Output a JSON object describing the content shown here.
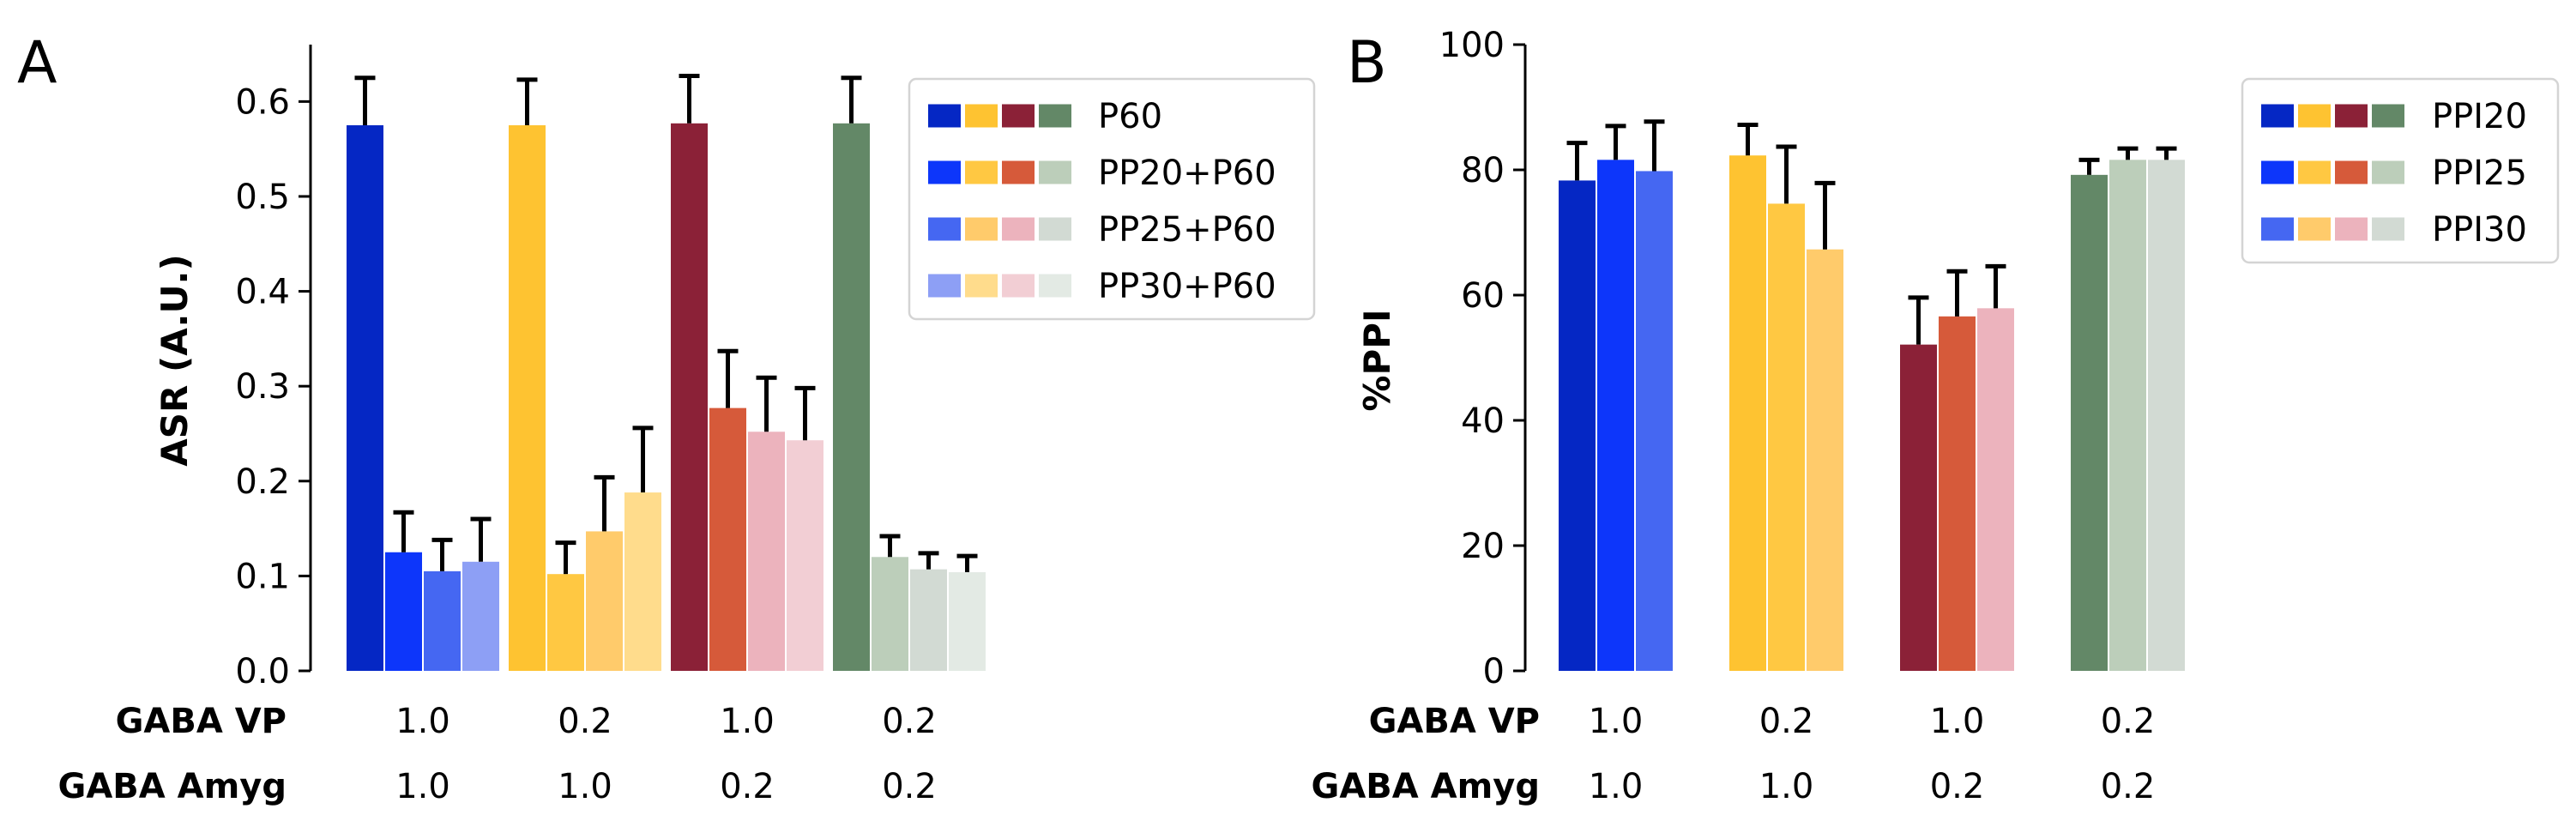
{
  "panels": [
    "A",
    "B"
  ],
  "chart_data": [
    {
      "type": "bar",
      "panel_label": "A",
      "ylabel": "ASR (A.U.)",
      "ylim": [
        0,
        0.66
      ],
      "yticks": [
        0.0,
        0.1,
        0.2,
        0.3,
        0.4,
        0.5,
        0.6
      ],
      "ytick_labels": [
        "0.0",
        "0.1",
        "0.2",
        "0.3",
        "0.4",
        "0.5",
        "0.6"
      ],
      "row_labels": [
        "GABA VP",
        "GABA Amyg"
      ],
      "groups": [
        {
          "vp": "1.0",
          "amyg": "1.0",
          "colors": [
            "#0527c4",
            "#0d36fa",
            "#4567f2",
            "#8d9ff5"
          ],
          "values": [
            0.575,
            0.125,
            0.105,
            0.115
          ],
          "errors": [
            0.05,
            0.042,
            0.033,
            0.045
          ]
        },
        {
          "vp": "0.2",
          "amyg": "1.0",
          "colors": [
            "#fec331",
            "#ffc842",
            "#ffcb6b",
            "#ffdc8c"
          ],
          "values": [
            0.575,
            0.102,
            0.147,
            0.188
          ],
          "errors": [
            0.048,
            0.033,
            0.057,
            0.068
          ]
        },
        {
          "vp": "1.0",
          "amyg": "0.2",
          "colors": [
            "#8b2137",
            "#d65a3a",
            "#ecb3bd",
            "#f2ced4"
          ],
          "values": [
            0.577,
            0.277,
            0.252,
            0.243
          ],
          "errors": [
            0.05,
            0.06,
            0.057,
            0.055
          ]
        },
        {
          "vp": "0.2",
          "amyg": "0.2",
          "colors": [
            "#638867",
            "#bcceba",
            "#d2dad3",
            "#e3eae4"
          ],
          "values": [
            0.577,
            0.12,
            0.107,
            0.104
          ],
          "errors": [
            0.048,
            0.022,
            0.017,
            0.017
          ]
        }
      ],
      "legend": {
        "placement": "top-right",
        "entries": [
          {
            "label": "P60",
            "colors": [
              "#0527c4",
              "#fec331",
              "#8b2137",
              "#638867"
            ]
          },
          {
            "label": "PP20+P60",
            "colors": [
              "#0d36fa",
              "#ffc842",
              "#d65a3a",
              "#bcceba"
            ]
          },
          {
            "label": "PP25+P60",
            "colors": [
              "#4567f2",
              "#ffcb6b",
              "#ecb3bd",
              "#d2dad3"
            ]
          },
          {
            "label": "PP30+P60",
            "colors": [
              "#8d9ff5",
              "#ffdc8c",
              "#f2ced4",
              "#e3eae4"
            ]
          }
        ]
      }
    },
    {
      "type": "bar",
      "panel_label": "B",
      "ylabel": "%PPI",
      "ylim": [
        0,
        100
      ],
      "yticks": [
        0,
        20,
        40,
        60,
        80,
        100
      ],
      "ytick_labels": [
        "0",
        "20",
        "40",
        "60",
        "80",
        "100"
      ],
      "row_labels": [
        "GABA VP",
        "GABA Amyg"
      ],
      "groups": [
        {
          "vp": "1.0",
          "amyg": "1.0",
          "colors": [
            "#0527c4",
            "#0d36fa",
            "#4567f2"
          ],
          "values": [
            78.3,
            81.6,
            79.8
          ],
          "errors": [
            6,
            5.4,
            7.9
          ]
        },
        {
          "vp": "0.2",
          "amyg": "1.0",
          "colors": [
            "#fec331",
            "#ffc842",
            "#ffcb6b"
          ],
          "values": [
            82.3,
            74.6,
            67.3
          ],
          "errors": [
            4.9,
            9.1,
            10.6
          ]
        },
        {
          "vp": "1.0",
          "amyg": "0.2",
          "colors": [
            "#8b2137",
            "#d65a3a",
            "#ecb3bd"
          ],
          "values": [
            52.1,
            56.6,
            57.9
          ],
          "errors": [
            7.5,
            7.2,
            6.7
          ]
        },
        {
          "vp": "0.2",
          "amyg": "0.2",
          "colors": [
            "#638867",
            "#bcceba",
            "#d2dad3"
          ],
          "values": [
            79.2,
            81.6,
            81.6
          ],
          "errors": [
            2.4,
            1.8,
            1.8
          ]
        }
      ],
      "legend": {
        "placement": "top-right",
        "entries": [
          {
            "label": "PPI20",
            "colors": [
              "#0527c4",
              "#fec331",
              "#8b2137",
              "#638867"
            ]
          },
          {
            "label": "PPI25",
            "colors": [
              "#0d36fa",
              "#ffc842",
              "#d65a3a",
              "#bcceba"
            ]
          },
          {
            "label": "PPI30",
            "colors": [
              "#4567f2",
              "#ffcb6b",
              "#ecb3bd",
              "#d2dad3"
            ]
          }
        ]
      }
    }
  ]
}
